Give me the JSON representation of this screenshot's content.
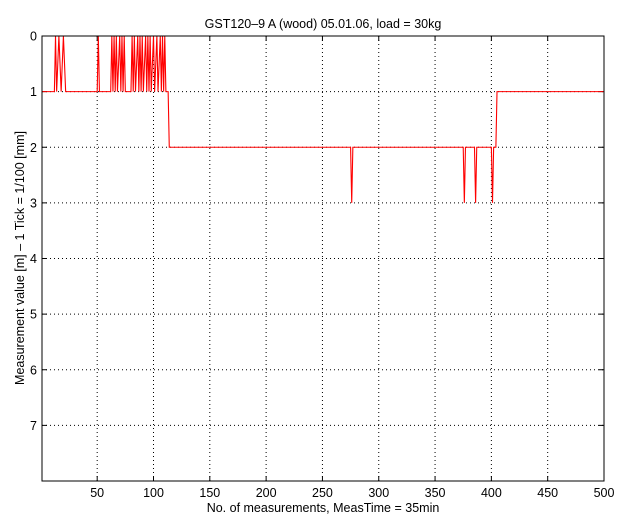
{
  "chart_data": {
    "type": "line",
    "title": "GST120–9 A (wood) 05.01.06, load = 30kg",
    "xlabel": "No. of measurements, MeasTime = 35min",
    "ylabel": "Measurement value [m] – 1 Tick = 1/100 [mm]",
    "xlim": [
      1,
      500
    ],
    "ylim": [
      0,
      8
    ],
    "y_reversed": true,
    "grid": true,
    "xticks": [
      50,
      100,
      150,
      200,
      250,
      300,
      350,
      400,
      450,
      500
    ],
    "xtick_labels": [
      "50",
      "100",
      "150",
      "200",
      "250",
      "300",
      "350",
      "400",
      "450",
      "500"
    ],
    "yticks": [
      0,
      1,
      2,
      3,
      4,
      5,
      6,
      7
    ],
    "ytick_labels": [
      "0",
      "1",
      "2",
      "3",
      "4",
      "5",
      "6",
      "7"
    ],
    "series": [
      {
        "color": "#ff0000",
        "points": [
          [
            1,
            1
          ],
          [
            12,
            1
          ],
          [
            13,
            0
          ],
          [
            14,
            1
          ],
          [
            16,
            0
          ],
          [
            18,
            1
          ],
          [
            20,
            0
          ],
          [
            22,
            1
          ],
          [
            50,
            1
          ],
          [
            51,
            0
          ],
          [
            52,
            1
          ],
          [
            62,
            1
          ],
          [
            63,
            0
          ],
          [
            64,
            1
          ],
          [
            65,
            0
          ],
          [
            66,
            1
          ],
          [
            67,
            0
          ],
          [
            68,
            1
          ],
          [
            70,
            0
          ],
          [
            71,
            1
          ],
          [
            72,
            0
          ],
          [
            73,
            1
          ],
          [
            74,
            0
          ],
          [
            75,
            1
          ],
          [
            80,
            1
          ],
          [
            81,
            0
          ],
          [
            82,
            1
          ],
          [
            83,
            0
          ],
          [
            84,
            1
          ],
          [
            86,
            0
          ],
          [
            87,
            1
          ],
          [
            88,
            0
          ],
          [
            89,
            1
          ],
          [
            90,
            0
          ],
          [
            91,
            1
          ],
          [
            93,
            0
          ],
          [
            94,
            1
          ],
          [
            95,
            0
          ],
          [
            96,
            1
          ],
          [
            97,
            0
          ],
          [
            98,
            1
          ],
          [
            100,
            0
          ],
          [
            101,
            1
          ],
          [
            103,
            0
          ],
          [
            104,
            1
          ],
          [
            106,
            0
          ],
          [
            107,
            1
          ],
          [
            108,
            0
          ],
          [
            109,
            1
          ],
          [
            110,
            0
          ],
          [
            111,
            1
          ],
          [
            113,
            1
          ],
          [
            114,
            2
          ],
          [
            275,
            2
          ],
          [
            276,
            3
          ],
          [
            277,
            2
          ],
          [
            375,
            2
          ],
          [
            376,
            3
          ],
          [
            377,
            2
          ],
          [
            385,
            2
          ],
          [
            386,
            3
          ],
          [
            387,
            2
          ],
          [
            400,
            2
          ],
          [
            401,
            3
          ],
          [
            402,
            2
          ],
          [
            404,
            2
          ],
          [
            405,
            1
          ],
          [
            500,
            1
          ]
        ]
      }
    ]
  }
}
